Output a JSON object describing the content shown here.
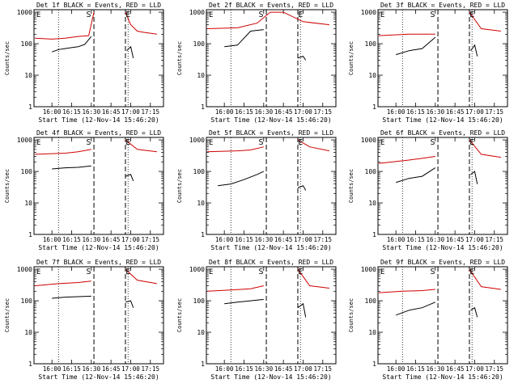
{
  "chart_data": [
    {
      "type": "line",
      "title": "Det 1f BLACK = Events, RED = LLD",
      "ylabel": "Counts/sec",
      "xlabel": "Start Time (12-Nov-14 15:46:20)",
      "x_ticks": [
        "16:00",
        "16:15",
        "16:30",
        "16:45",
        "17:00",
        "17:15"
      ],
      "y_ticks": [
        "1",
        "10",
        "100",
        "1000"
      ],
      "yscale": "log",
      "ylim": [
        1,
        1200
      ],
      "xlim": [
        "15:46:20",
        "17:25:00"
      ],
      "markers": {
        "S": "16:28",
        "E": "16:58"
      },
      "dotted_lines": [
        "16:05",
        "16:58"
      ],
      "dashed_lines": [
        "16:32",
        "16:56"
      ],
      "series": [
        {
          "name": "Events",
          "color": "#000000",
          "segments": [
            {
              "x": [
                "16:00",
                "16:05",
                "16:10",
                "16:15",
                "16:20",
                "16:25",
                "16:30"
              ],
              "y": [
                55,
                65,
                70,
                75,
                80,
                95,
                170
              ]
            },
            {
              "x": [
                "16:57",
                "17:00",
                "17:02"
              ],
              "y": [
                60,
                80,
                35
              ]
            }
          ]
        },
        {
          "name": "LLD",
          "color": "#d00000",
          "segments": [
            {
              "x": [
                "15:47",
                "16:00",
                "16:10",
                "16:20",
                "16:28",
                "16:32"
              ],
              "y": [
                150,
                140,
                150,
                170,
                180,
                1000
              ]
            },
            {
              "x": [
                "16:56",
                "17:00",
                "17:05",
                "17:10",
                "17:20"
              ],
              "y": [
                1000,
                400,
                250,
                230,
                200
              ]
            }
          ]
        }
      ]
    },
    {
      "type": "line",
      "title": "Det 2f BLACK = Events, RED = LLD",
      "ylabel": "Counts/sec",
      "xlabel": "Start Time (12-Nov-14 15:46:20)",
      "x_ticks": [
        "16:00",
        "16:15",
        "16:30",
        "16:45",
        "17:00",
        "17:15"
      ],
      "y_ticks": [
        "1",
        "10",
        "100",
        "1000"
      ],
      "yscale": "log",
      "ylim": [
        1,
        1200
      ],
      "xlim": [
        "15:46:20",
        "17:25:00"
      ],
      "markers": {
        "S": "16:28",
        "E": "16:58"
      },
      "dotted_lines": [
        "16:05",
        "16:58"
      ],
      "dashed_lines": [
        "16:32",
        "16:56"
      ],
      "series": [
        {
          "name": "Events",
          "color": "#000000",
          "segments": [
            {
              "x": [
                "16:00",
                "16:10",
                "16:20",
                "16:30"
              ],
              "y": [
                80,
                90,
                250,
                280
              ]
            },
            {
              "x": [
                "16:56",
                "17:00",
                "17:02"
              ],
              "y": [
                35,
                40,
                30
              ]
            }
          ]
        },
        {
          "name": "LLD",
          "color": "#d00000",
          "segments": [
            {
              "x": [
                "15:47",
                "16:10",
                "16:25",
                "16:35",
                "16:45",
                "17:00",
                "17:20"
              ],
              "y": [
                300,
                320,
                450,
                1000,
                1000,
                500,
                400
              ]
            }
          ]
        }
      ]
    },
    {
      "type": "line",
      "title": "Det 3f BLACK = Events, RED = LLD",
      "ylabel": "Counts/sec",
      "xlabel": "Start Time (12-Nov-14 15:46:20)",
      "x_ticks": [
        "16:00",
        "16:15",
        "16:30",
        "16:45",
        "17:00",
        "17:15"
      ],
      "y_ticks": [
        "1",
        "10",
        "100",
        "1000"
      ],
      "yscale": "log",
      "ylim": [
        1,
        1200
      ],
      "xlim": [
        "15:46:20",
        "17:25:00"
      ],
      "markers": {
        "S": "16:28",
        "E": "16:58"
      },
      "dotted_lines": [
        "16:05",
        "16:58"
      ],
      "dashed_lines": [
        "16:32",
        "16:56"
      ],
      "series": [
        {
          "name": "Events",
          "color": "#000000",
          "segments": [
            {
              "x": [
                "16:00",
                "16:10",
                "16:20",
                "16:30"
              ],
              "y": [
                45,
                60,
                70,
                160
              ]
            },
            {
              "x": [
                "16:57",
                "17:00",
                "17:02"
              ],
              "y": [
                60,
                90,
                40
              ]
            }
          ]
        },
        {
          "name": "LLD",
          "color": "#d00000",
          "segments": [
            {
              "x": [
                "15:47",
                "16:10",
                "16:30"
              ],
              "y": [
                180,
                200,
                200
              ]
            },
            {
              "x": [
                "16:56",
                "17:05",
                "17:20"
              ],
              "y": [
                1000,
                300,
                250
              ]
            }
          ]
        }
      ]
    },
    {
      "type": "line",
      "title": "Det 4f BLACK = Events, RED = LLD",
      "ylabel": "Counts/sec",
      "xlabel": "Start Time (12-Nov-14 15:46:20)",
      "x_ticks": [
        "16:00",
        "16:15",
        "16:30",
        "16:45",
        "17:00",
        "17:15"
      ],
      "y_ticks": [
        "1",
        "10",
        "100",
        "1000"
      ],
      "yscale": "log",
      "ylim": [
        1,
        1200
      ],
      "xlim": [
        "15:46:20",
        "17:25:00"
      ],
      "markers": {
        "S": "16:28",
        "E": "16:58"
      },
      "dotted_lines": [
        "16:05",
        "16:58"
      ],
      "dashed_lines": [
        "16:32",
        "16:56"
      ],
      "series": [
        {
          "name": "Events",
          "color": "#000000",
          "segments": [
            {
              "x": [
                "16:00",
                "16:10",
                "16:20",
                "16:30"
              ],
              "y": [
                120,
                130,
                135,
                150
              ]
            },
            {
              "x": [
                "16:56",
                "17:00",
                "17:02"
              ],
              "y": [
                70,
                80,
                50
              ]
            }
          ]
        },
        {
          "name": "LLD",
          "color": "#d00000",
          "segments": [
            {
              "x": [
                "15:47",
                "16:10",
                "16:20",
                "16:30"
              ],
              "y": [
                350,
                380,
                420,
                500
              ]
            },
            {
              "x": [
                "16:56",
                "17:05",
                "17:20"
              ],
              "y": [
                1000,
                500,
                420
              ]
            }
          ]
        }
      ]
    },
    {
      "type": "line",
      "title": "Det 5f BLACK = Events, RED = LLD",
      "ylabel": "Counts/sec",
      "xlabel": "Start Time (12-Nov-14 15:46:20)",
      "x_ticks": [
        "16:00",
        "16:15",
        "16:30",
        "16:45",
        "17:00",
        "17:15"
      ],
      "y_ticks": [
        "1",
        "10",
        "100",
        "1000"
      ],
      "yscale": "log",
      "ylim": [
        1,
        1200
      ],
      "xlim": [
        "15:46:20",
        "17:25:00"
      ],
      "markers": {
        "S": "16:28",
        "E": "16:58"
      },
      "dotted_lines": [
        "16:05",
        "16:58"
      ],
      "dashed_lines": [
        "16:32",
        "16:56"
      ],
      "series": [
        {
          "name": "Events",
          "color": "#000000",
          "segments": [
            {
              "x": [
                "15:55",
                "16:05",
                "16:15",
                "16:25",
                "16:30"
              ],
              "y": [
                35,
                40,
                55,
                80,
                100
              ]
            },
            {
              "x": [
                "16:56",
                "17:00",
                "17:02"
              ],
              "y": [
                30,
                35,
                25
              ]
            }
          ]
        },
        {
          "name": "LLD",
          "color": "#d00000",
          "segments": [
            {
              "x": [
                "15:47",
                "16:10",
                "16:20",
                "16:30"
              ],
              "y": [
                420,
                450,
                480,
                600
              ]
            },
            {
              "x": [
                "16:56",
                "17:05",
                "17:20"
              ],
              "y": [
                1000,
                600,
                450
              ]
            }
          ]
        }
      ]
    },
    {
      "type": "line",
      "title": "Det 6f BLACK = Events, RED = LLD",
      "ylabel": "Counts/sec",
      "xlabel": "Start Time (12-Nov-14 15:46:20)",
      "x_ticks": [
        "16:00",
        "16:15",
        "16:30",
        "16:45",
        "17:00",
        "17:15"
      ],
      "y_ticks": [
        "1",
        "10",
        "100",
        "1000"
      ],
      "yscale": "log",
      "ylim": [
        1,
        1200
      ],
      "xlim": [
        "15:46:20",
        "17:25:00"
      ],
      "markers": {
        "S": "16:28",
        "E": "16:58"
      },
      "dotted_lines": [
        "16:05",
        "16:58"
      ],
      "dashed_lines": [
        "16:32",
        "16:56"
      ],
      "series": [
        {
          "name": "Events",
          "color": "#000000",
          "segments": [
            {
              "x": [
                "16:00",
                "16:10",
                "16:20",
                "16:30"
              ],
              "y": [
                45,
                60,
                70,
                130
              ]
            },
            {
              "x": [
                "16:57",
                "17:00",
                "17:02"
              ],
              "y": [
                80,
                100,
                40
              ]
            }
          ]
        },
        {
          "name": "LLD",
          "color": "#d00000",
          "segments": [
            {
              "x": [
                "15:47",
                "16:10",
                "16:20",
                "16:30"
              ],
              "y": [
                180,
                230,
                260,
                300
              ]
            },
            {
              "x": [
                "16:56",
                "17:05",
                "17:20"
              ],
              "y": [
                1000,
                350,
                280
              ]
            }
          ]
        }
      ]
    },
    {
      "type": "line",
      "title": "Det 7f BLACK = Events, RED = LLD",
      "ylabel": "Counts/sec",
      "xlabel": "Start Time (12-Nov-14 15:46:20)",
      "x_ticks": [
        "16:00",
        "16:15",
        "16:30",
        "16:45",
        "17:00",
        "17:15"
      ],
      "y_ticks": [
        "1",
        "10",
        "100",
        "1000"
      ],
      "yscale": "log",
      "ylim": [
        1,
        1200
      ],
      "xlim": [
        "15:46:20",
        "17:25:00"
      ],
      "markers": {
        "S": "16:28",
        "E": "16:58"
      },
      "dotted_lines": [
        "16:05",
        "16:58"
      ],
      "dashed_lines": [
        "16:32",
        "16:56"
      ],
      "series": [
        {
          "name": "Events",
          "color": "#000000",
          "segments": [
            {
              "x": [
                "16:00",
                "16:10",
                "16:20",
                "16:30"
              ],
              "y": [
                120,
                130,
                135,
                140
              ]
            },
            {
              "x": [
                "16:56",
                "17:00",
                "17:02"
              ],
              "y": [
                90,
                100,
                60
              ]
            }
          ]
        },
        {
          "name": "LLD",
          "color": "#d00000",
          "segments": [
            {
              "x": [
                "15:47",
                "16:05",
                "16:20",
                "16:30"
              ],
              "y": [
                300,
                350,
                380,
                420
              ]
            },
            {
              "x": [
                "16:56",
                "17:05",
                "17:20"
              ],
              "y": [
                1000,
                450,
                350
              ]
            }
          ]
        }
      ]
    },
    {
      "type": "line",
      "title": "Det 8f BLACK = Events, RED = LLD",
      "ylabel": "Counts/sec",
      "xlabel": "Start Time (12-Nov-14 15:46:20)",
      "x_ticks": [
        "16:00",
        "16:15",
        "16:30",
        "16:45",
        "17:00",
        "17:15"
      ],
      "y_ticks": [
        "1",
        "10",
        "100",
        "1000"
      ],
      "yscale": "log",
      "ylim": [
        1,
        1200
      ],
      "xlim": [
        "15:46:20",
        "17:25:00"
      ],
      "markers": {
        "S": "16:28",
        "E": "16:58"
      },
      "dotted_lines": [
        "16:05",
        "16:58"
      ],
      "dashed_lines": [
        "16:32",
        "16:56"
      ],
      "series": [
        {
          "name": "Events",
          "color": "#000000",
          "segments": [
            {
              "x": [
                "16:00",
                "16:10",
                "16:20",
                "16:30"
              ],
              "y": [
                80,
                90,
                100,
                110
              ]
            },
            {
              "x": [
                "16:56",
                "17:00",
                "17:02"
              ],
              "y": [
                60,
                80,
                30
              ]
            }
          ]
        },
        {
          "name": "LLD",
          "color": "#d00000",
          "segments": [
            {
              "x": [
                "15:47",
                "16:05",
                "16:20",
                "16:30"
              ],
              "y": [
                200,
                220,
                240,
                300
              ]
            },
            {
              "x": [
                "16:56",
                "17:05",
                "17:20"
              ],
              "y": [
                1000,
                300,
                250
              ]
            }
          ]
        }
      ]
    },
    {
      "type": "line",
      "title": "Det 9f BLACK = Events, RED = LLD",
      "ylabel": "Counts/sec",
      "xlabel": "Start Time (12-Nov-14 15:46:20)",
      "x_ticks": [
        "16:00",
        "16:15",
        "16:30",
        "16:45",
        "17:00",
        "17:15"
      ],
      "y_ticks": [
        "1",
        "10",
        "100",
        "1000"
      ],
      "yscale": "log",
      "ylim": [
        1,
        1200
      ],
      "xlim": [
        "15:46:20",
        "17:25:00"
      ],
      "markers": {
        "S": "16:28",
        "E": "16:58"
      },
      "dotted_lines": [
        "16:05",
        "16:58"
      ],
      "dashed_lines": [
        "16:32",
        "16:56"
      ],
      "series": [
        {
          "name": "Events",
          "color": "#000000",
          "segments": [
            {
              "x": [
                "16:00",
                "16:10",
                "16:20",
                "16:30"
              ],
              "y": [
                35,
                50,
                60,
                90
              ]
            },
            {
              "x": [
                "16:57",
                "17:00",
                "17:02"
              ],
              "y": [
                50,
                60,
                30
              ]
            }
          ]
        },
        {
          "name": "LLD",
          "color": "#d00000",
          "segments": [
            {
              "x": [
                "15:47",
                "16:05",
                "16:20",
                "16:30"
              ],
              "y": [
                180,
                200,
                210,
                230
              ]
            },
            {
              "x": [
                "16:56",
                "17:05",
                "17:20"
              ],
              "y": [
                1000,
                280,
                230
              ]
            }
          ]
        }
      ]
    }
  ]
}
